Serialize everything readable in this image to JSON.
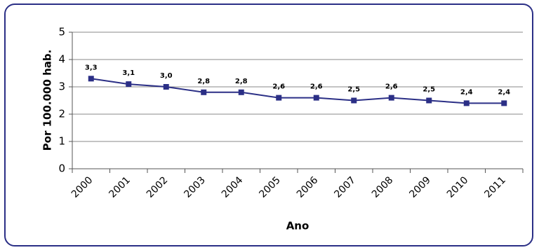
{
  "chart_data": {
    "type": "line",
    "x_label": "Ano",
    "y_label": "Por 100.000 hab.",
    "categories": [
      "2000",
      "2001",
      "2002",
      "2003",
      "2004",
      "2005",
      "2006",
      "2007",
      "2008",
      "2009",
      "2010",
      "2011"
    ],
    "series": [
      {
        "name": null,
        "color": "#2b2f86",
        "values": [
          3.3,
          3.1,
          3.0,
          2.8,
          2.8,
          2.6,
          2.6,
          2.5,
          2.6,
          2.5,
          2.4,
          2.4
        ],
        "value_labels": [
          "3,3",
          "3,1",
          "3,0",
          "2,8",
          "2,8",
          "2,6",
          "2,6",
          "2,5",
          "2,6",
          "2,5",
          "2,4",
          "2,4"
        ]
      }
    ],
    "ylim": [
      0,
      5
    ],
    "yticks": [
      0,
      1,
      2,
      3,
      4,
      5
    ],
    "grid": true
  }
}
